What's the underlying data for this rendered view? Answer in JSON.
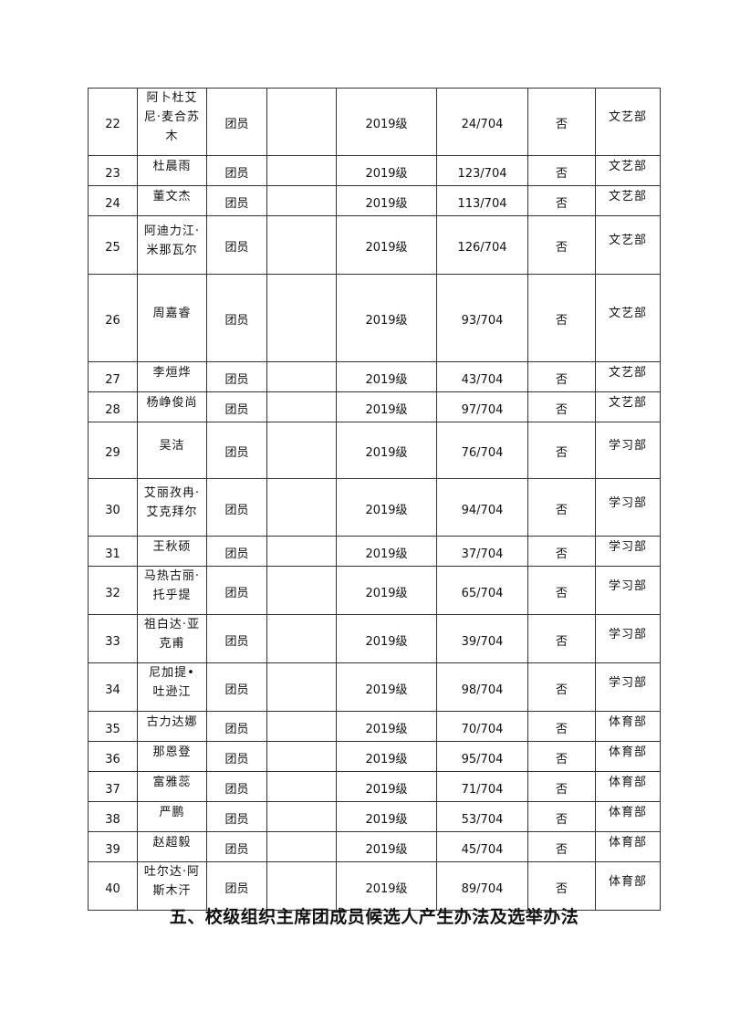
{
  "rows": [
    {
      "no": "22",
      "name": "阿卜杜艾尼·麦合苏木",
      "role": "团员",
      "blank": "",
      "grade": "2019级",
      "rank": "24/704",
      "flag": "否",
      "dept": "文艺部"
    },
    {
      "no": "23",
      "name": "杜晨雨",
      "role": "团员",
      "blank": "",
      "grade": "2019级",
      "rank": "123/704",
      "flag": "否",
      "dept": "文艺部"
    },
    {
      "no": "24",
      "name": "董文杰",
      "role": "团员",
      "blank": "",
      "grade": "2019级",
      "rank": "113/704",
      "flag": "否",
      "dept": "文艺部"
    },
    {
      "no": "25",
      "name": "阿迪力江·米那瓦尔",
      "role": "团员",
      "blank": "",
      "grade": "2019级",
      "rank": "126/704",
      "flag": "否",
      "dept": "文艺部"
    },
    {
      "no": "26",
      "name": "周嘉睿",
      "role": "团员",
      "blank": "",
      "grade": "2019级",
      "rank": "93/704",
      "flag": "否",
      "dept": "文艺部"
    },
    {
      "no": "27",
      "name": "李烜烨",
      "role": "团员",
      "blank": "",
      "grade": "2019级",
      "rank": "43/704",
      "flag": "否",
      "dept": "文艺部"
    },
    {
      "no": "28",
      "name": "杨峥俊尚",
      "role": "团员",
      "blank": "",
      "grade": "2019级",
      "rank": "97/704",
      "flag": "否",
      "dept": "文艺部"
    },
    {
      "no": "29",
      "name": "吴洁",
      "role": "团员",
      "blank": "",
      "grade": "2019级",
      "rank": "76/704",
      "flag": "否",
      "dept": "学习部"
    },
    {
      "no": "30",
      "name": "艾丽孜冉·艾克拜尔",
      "role": "团员",
      "blank": "",
      "grade": "2019级",
      "rank": "94/704",
      "flag": "否",
      "dept": "学习部"
    },
    {
      "no": "31",
      "name": "王秋硕",
      "role": "团员",
      "blank": "",
      "grade": "2019级",
      "rank": "37/704",
      "flag": "否",
      "dept": "学习部"
    },
    {
      "no": "32",
      "name": "马热古丽·托乎提",
      "role": "团员",
      "blank": "",
      "grade": "2019级",
      "rank": "65/704",
      "flag": "否",
      "dept": "学习部"
    },
    {
      "no": "33",
      "name": "祖白达·亚克甫",
      "role": "团员",
      "blank": "",
      "grade": "2019级",
      "rank": "39/704",
      "flag": "否",
      "dept": "学习部"
    },
    {
      "no": "34",
      "name": "尼加提•吐逊江",
      "role": "团员",
      "blank": "",
      "grade": "2019级",
      "rank": "98/704",
      "flag": "否",
      "dept": "学习部"
    },
    {
      "no": "35",
      "name": "古力达娜",
      "role": "团员",
      "blank": "",
      "grade": "2019级",
      "rank": "70/704",
      "flag": "否",
      "dept": "体育部"
    },
    {
      "no": "36",
      "name": "那恩登",
      "role": "团员",
      "blank": "",
      "grade": "2019级",
      "rank": "95/704",
      "flag": "否",
      "dept": "体育部"
    },
    {
      "no": "37",
      "name": "富雅蕊",
      "role": "团员",
      "blank": "",
      "grade": "2019级",
      "rank": "71/704",
      "flag": "否",
      "dept": "体育部"
    },
    {
      "no": "38",
      "name": "严鹏",
      "role": "团员",
      "blank": "",
      "grade": "2019级",
      "rank": "53/704",
      "flag": "否",
      "dept": "体育部"
    },
    {
      "no": "39",
      "name": "赵超毅",
      "role": "团员",
      "blank": "",
      "grade": "2019级",
      "rank": "45/704",
      "flag": "否",
      "dept": "体育部"
    },
    {
      "no": "40",
      "name": "吐尔达·阿斯木汗",
      "role": "团员",
      "blank": "",
      "grade": "2019级",
      "rank": "89/704",
      "flag": "否",
      "dept": "体育部"
    }
  ],
  "section_heading": "五、校级组织主席团成员候选人产生办法及选举办法"
}
